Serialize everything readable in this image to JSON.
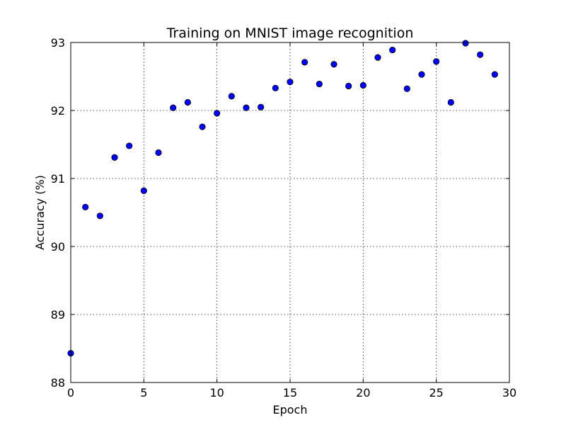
{
  "chart_data": {
    "type": "scatter",
    "title": "Training on MNIST image recognition",
    "xlabel": "Epoch",
    "ylabel": "Accuracy (%)",
    "xlim": [
      0,
      30
    ],
    "ylim": [
      88,
      93
    ],
    "xticks": [
      0,
      5,
      10,
      15,
      20,
      25,
      30
    ],
    "yticks": [
      88,
      89,
      90,
      91,
      92,
      93
    ],
    "grid": true,
    "marker_color": "#0000ff",
    "series": [
      {
        "x": [
          0,
          1,
          2,
          3,
          4,
          5,
          6,
          7,
          8,
          9,
          10,
          11,
          12,
          13,
          14,
          15,
          16,
          17,
          18,
          19,
          20,
          21,
          22,
          23,
          24,
          25,
          26,
          27,
          28,
          29
        ],
        "values": [
          88.43,
          90.58,
          90.45,
          91.31,
          91.48,
          90.82,
          91.38,
          92.04,
          92.12,
          91.76,
          91.96,
          92.21,
          92.04,
          92.05,
          92.33,
          92.42,
          92.71,
          92.39,
          92.68,
          92.36,
          92.37,
          92.78,
          92.89,
          92.32,
          92.53,
          92.72,
          92.12,
          92.99,
          92.82,
          92.53
        ]
      }
    ]
  }
}
